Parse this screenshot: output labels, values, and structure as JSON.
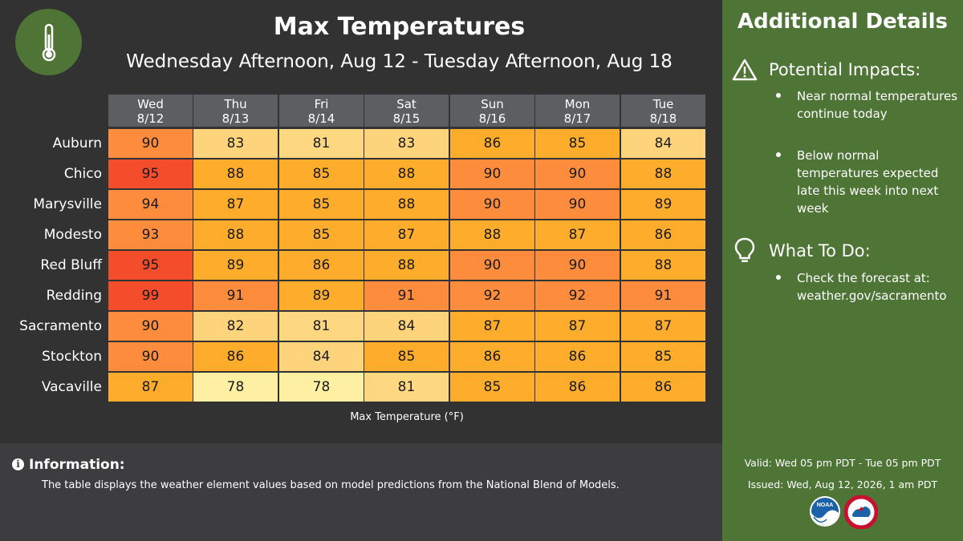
{
  "header": {
    "title": "Max Temperatures",
    "subtitle": "Wednesday Afternoon, Aug 12 - Tuesday Afternoon, Aug 18",
    "logo_icon": "thermometer-icon"
  },
  "table": {
    "days": [
      {
        "day": "Wed",
        "date": "8/12"
      },
      {
        "day": "Thu",
        "date": "8/13"
      },
      {
        "day": "Fri",
        "date": "8/14"
      },
      {
        "day": "Sat",
        "date": "8/15"
      },
      {
        "day": "Sun",
        "date": "8/16"
      },
      {
        "day": "Mon",
        "date": "8/17"
      },
      {
        "day": "Tue",
        "date": "8/18"
      }
    ],
    "rows": [
      {
        "city": "Auburn",
        "values": [
          90,
          83,
          81,
          83,
          86,
          85,
          84
        ]
      },
      {
        "city": "Chico",
        "values": [
          95,
          88,
          85,
          88,
          90,
          90,
          88
        ]
      },
      {
        "city": "Marysville",
        "values": [
          94,
          87,
          85,
          88,
          90,
          90,
          89
        ]
      },
      {
        "city": "Modesto",
        "values": [
          93,
          88,
          85,
          87,
          88,
          87,
          86
        ]
      },
      {
        "city": "Red Bluff",
        "values": [
          95,
          89,
          86,
          88,
          90,
          90,
          88
        ]
      },
      {
        "city": "Redding",
        "values": [
          99,
          91,
          89,
          91,
          92,
          92,
          91
        ]
      },
      {
        "city": "Sacramento",
        "values": [
          90,
          82,
          81,
          84,
          87,
          87,
          87
        ]
      },
      {
        "city": "Stockton",
        "values": [
          90,
          86,
          84,
          85,
          86,
          86,
          85
        ]
      },
      {
        "city": "Vacaville",
        "values": [
          87,
          78,
          78,
          81,
          85,
          86,
          86
        ]
      }
    ],
    "legend_label": "Max Temperature (°F)",
    "colors": {
      "header_bg": "#5d5e61",
      "scale": {
        "78": "#fef0a2",
        "81": "#fdd880",
        "82": "#fdd47c",
        "83": "#fdd47c",
        "84": "#fdd47c",
        "85": "#fdac2c",
        "86": "#fdac2c",
        "87": "#fdac2c",
        "88": "#fdac2c",
        "89": "#fdac2c",
        "90": "#fd8c3c",
        "91": "#fd8c3c",
        "92": "#fd8c3c",
        "93": "#fd8c3c",
        "94": "#fd8c3c",
        "95": "#f44d2c",
        "99": "#f44d2c"
      }
    }
  },
  "info": {
    "title": "Information:",
    "text": "The table displays the weather element values based on model predictions from the National Blend of Models."
  },
  "sidebar": {
    "title": "Additional Details",
    "sections": [
      {
        "icon": "warning-triangle-icon",
        "title": "Potential Impacts:",
        "bullets": [
          "Near normal temperatures continue today",
          "Below normal temperatures expected late this week into next week"
        ]
      },
      {
        "icon": "lightbulb-icon",
        "title": "What To Do:",
        "bullets": [
          "Check the forecast at: weather.gov/sacramento"
        ]
      }
    ],
    "valid": "Valid: Wed 05 pm PDT - Tue 05 pm PDT",
    "issued": "Issued: Wed, Aug 12, 2026, 1 am PDT",
    "logos": [
      "noaa-logo",
      "nws-logo"
    ]
  },
  "colors": {
    "background": "#323233",
    "info_background": "#3d3d3f",
    "sidebar_background": "#4e7536"
  }
}
